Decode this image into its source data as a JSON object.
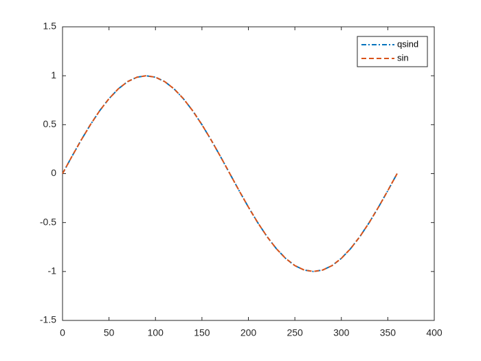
{
  "chart_data": {
    "type": "line",
    "x": [
      0,
      10,
      20,
      30,
      40,
      50,
      60,
      70,
      80,
      90,
      100,
      110,
      120,
      130,
      140,
      150,
      160,
      170,
      180,
      190,
      200,
      210,
      220,
      230,
      240,
      250,
      260,
      270,
      280,
      290,
      300,
      310,
      320,
      330,
      340,
      350,
      360
    ],
    "series": [
      {
        "name": "qsind",
        "color": "#0072bd",
        "dash": "dashdot",
        "values": [
          0,
          0.174,
          0.342,
          0.5,
          0.643,
          0.766,
          0.866,
          0.94,
          0.985,
          1,
          0.985,
          0.94,
          0.866,
          0.766,
          0.643,
          0.5,
          0.342,
          0.174,
          0,
          -0.174,
          -0.342,
          -0.5,
          -0.643,
          -0.766,
          -0.866,
          -0.94,
          -0.985,
          -1,
          -0.985,
          -0.94,
          -0.866,
          -0.766,
          -0.643,
          -0.5,
          -0.342,
          -0.174,
          0
        ]
      },
      {
        "name": "sin",
        "color": "#d95319",
        "dash": "dashed",
        "values": [
          0,
          0.174,
          0.342,
          0.5,
          0.643,
          0.766,
          0.866,
          0.94,
          0.985,
          1,
          0.985,
          0.94,
          0.866,
          0.766,
          0.643,
          0.5,
          0.342,
          0.174,
          0,
          -0.174,
          -0.342,
          -0.5,
          -0.643,
          -0.766,
          -0.866,
          -0.94,
          -0.985,
          -1,
          -0.985,
          -0.94,
          -0.866,
          -0.766,
          -0.643,
          -0.5,
          -0.342,
          -0.174,
          0
        ]
      }
    ],
    "xlim": [
      0,
      400
    ],
    "xticks": [
      0,
      50,
      100,
      150,
      200,
      250,
      300,
      350,
      400
    ],
    "ylim": [
      -1.5,
      1.5
    ],
    "yticks": [
      -1.5,
      -1,
      -0.5,
      0,
      0.5,
      1,
      1.5
    ],
    "grid": false,
    "legend": "northeast"
  }
}
